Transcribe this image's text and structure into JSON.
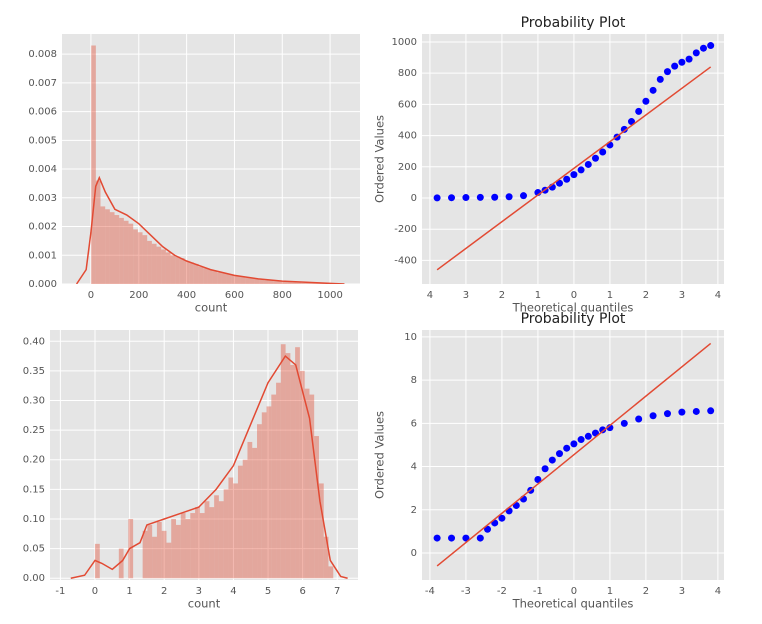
{
  "chart_data": [
    {
      "type": "histogram",
      "xlabel": "count",
      "color": "#e24a33",
      "bins": [
        1,
        20.5,
        40.0,
        59.6,
        79.1,
        98.6,
        118.1,
        137.6,
        157.2,
        176.7,
        196.2,
        215.7,
        235.2,
        254.8,
        274.3,
        293.8,
        313.3,
        332.8,
        352.4,
        371.9,
        391.4,
        410.9,
        430.4,
        450.0,
        469.5,
        489.0,
        508.5,
        528.0,
        547.6,
        567.1,
        586.6,
        606.1,
        625.6,
        645.2,
        664.7,
        684.2,
        703.7,
        723.2,
        742.8,
        762.3,
        781.8,
        801.3,
        820.8,
        840.4,
        859.9,
        879.4,
        898.9,
        918.4,
        938.0,
        957.5,
        977.0
      ],
      "values": [
        0.0083,
        0.0036,
        0.0027,
        0.0026,
        0.0025,
        0.0024,
        0.0023,
        0.0022,
        0.0021,
        0.0019,
        0.0018,
        0.0017,
        0.0015,
        0.0014,
        0.0013,
        0.0012,
        0.0011,
        0.001,
        0.00095,
        0.0009,
        0.0008,
        0.00075,
        0.0007,
        0.0006,
        0.00055,
        0.0005,
        0.00045,
        0.0004,
        0.00038,
        0.00035,
        0.0003,
        0.00028,
        0.00025,
        0.00022,
        0.0002,
        0.00018,
        0.00015,
        0.00013,
        0.00012,
        0.0001,
        9e-05,
        8e-05,
        7e-05,
        6e-05,
        5e-05,
        4e-05,
        4e-05,
        3e-05,
        3e-05,
        2e-05
      ],
      "kde": {
        "x": [
          -60,
          -20,
          0,
          20,
          35,
          60,
          100,
          150,
          200,
          250,
          300,
          350,
          400,
          450,
          500,
          600,
          700,
          800,
          900,
          1000,
          1060
        ],
        "y": [
          0,
          0.0005,
          0.0018,
          0.0034,
          0.0037,
          0.0032,
          0.0026,
          0.0024,
          0.0021,
          0.0017,
          0.0013,
          0.001,
          0.0008,
          0.00065,
          0.0005,
          0.0003,
          0.00018,
          0.0001,
          6e-05,
          2e-05,
          0
        ]
      },
      "xlim": [
        -121,
        1125
      ],
      "xticks": [
        0,
        200,
        400,
        600,
        800,
        1000
      ],
      "ylim": [
        0,
        0.0087
      ],
      "yticks": [
        {
          "value": 0,
          "label": "0.000"
        },
        0.001,
        0.002,
        0.003,
        0.004,
        0.005,
        0.006,
        0.007,
        0.008
      ],
      "grid": true
    },
    {
      "type": "scatter",
      "title": "Probability Plot",
      "xlabel": "Theoretical quantiles",
      "ylabel": "Ordered Values",
      "color": "#0000ff",
      "line_color": "#e24a33",
      "x": [
        -3.8,
        -3.4,
        -3.0,
        -2.6,
        -2.2,
        -1.8,
        -1.4,
        -1.0,
        -0.8,
        -0.6,
        -0.4,
        -0.2,
        0,
        0.2,
        0.4,
        0.6,
        0.8,
        1.0,
        1.2,
        1.4,
        1.6,
        1.8,
        2.0,
        2.2,
        2.4,
        2.6,
        2.8,
        3.0,
        3.2,
        3.4,
        3.6,
        3.8
      ],
      "values": [
        1,
        2,
        3,
        4,
        5,
        8,
        15,
        35,
        50,
        70,
        95,
        120,
        150,
        180,
        215,
        255,
        295,
        340,
        390,
        440,
        490,
        555,
        620,
        690,
        760,
        810,
        845,
        870,
        890,
        930,
        960,
        977
      ],
      "fit_line": {
        "x": [
          -3.8,
          3.8
        ],
        "y": [
          -460,
          840
        ]
      },
      "xlim": [
        -4.22,
        4.17
      ],
      "xticks": [
        {
          "value": -4,
          "label": "4"
        },
        {
          "value": -3,
          "label": "3"
        },
        {
          "value": -2,
          "label": "2"
        },
        {
          "value": -1,
          "label": "1"
        },
        0,
        1,
        2,
        3,
        4
      ],
      "ylim": [
        -551,
        1051
      ],
      "yticks": [
        -400,
        -200,
        0,
        200,
        400,
        600,
        800,
        1000
      ],
      "grid": true
    },
    {
      "type": "histogram",
      "xlabel": "count",
      "color": "#e24a33",
      "bins": [
        0,
        0.138,
        0.275,
        0.413,
        0.551,
        0.689,
        0.826,
        0.964,
        1.102,
        1.239,
        1.377,
        1.515,
        1.652,
        1.79,
        1.928,
        2.066,
        2.203,
        2.341,
        2.479,
        2.616,
        2.754,
        2.892,
        3.029,
        3.167,
        3.305,
        3.443,
        3.58,
        3.718,
        3.856,
        3.993,
        4.131,
        4.269,
        4.406,
        4.544,
        4.682,
        4.82,
        4.957,
        5.095,
        5.233,
        5.37,
        5.508,
        5.646,
        5.783,
        5.921,
        6.059,
        6.197,
        6.334,
        6.472,
        6.61,
        6.747,
        6.885
      ],
      "values": [
        0.058,
        0,
        0,
        0,
        0,
        0.05,
        0,
        0.1,
        0,
        0,
        0.08,
        0.09,
        0.07,
        0.095,
        0.08,
        0.06,
        0.1,
        0.09,
        0.11,
        0.1,
        0.11,
        0.12,
        0.11,
        0.13,
        0.12,
        0.14,
        0.13,
        0.15,
        0.17,
        0.16,
        0.19,
        0.2,
        0.23,
        0.22,
        0.26,
        0.28,
        0.29,
        0.31,
        0.33,
        0.395,
        0.38,
        0.36,
        0.39,
        0.35,
        0.32,
        0.31,
        0.24,
        0.16,
        0.07,
        0.02
      ],
      "kde": {
        "x": [
          -0.7,
          -0.3,
          0,
          0.2,
          0.5,
          0.8,
          1.0,
          1.3,
          1.5,
          2,
          2.5,
          3,
          3.5,
          4,
          4.5,
          5,
          5.5,
          5.8,
          6.2,
          6.5,
          6.8,
          7.1,
          7.3
        ],
        "y": [
          0,
          0.005,
          0.03,
          0.025,
          0.015,
          0.03,
          0.05,
          0.06,
          0.09,
          0.1,
          0.11,
          0.12,
          0.15,
          0.19,
          0.26,
          0.33,
          0.375,
          0.36,
          0.27,
          0.13,
          0.03,
          0.003,
          0
        ]
      },
      "xlim": [
        -1.3,
        7.6
      ],
      "xticks": [
        -1,
        0,
        1,
        2,
        3,
        4,
        5,
        6,
        7
      ],
      "ylim": [
        -0.003,
        0.419
      ],
      "yticks": [
        {
          "value": 0,
          "label": "0.00"
        },
        0.05,
        {
          "value": 0.1,
          "label": "0.10"
        },
        0.15,
        {
          "value": 0.2,
          "label": "0.20"
        },
        0.25,
        {
          "value": 0.3,
          "label": "0.30"
        },
        0.35,
        {
          "value": 0.4,
          "label": "0.40"
        }
      ],
      "grid": true
    },
    {
      "type": "scatter",
      "title": "Probability Plot",
      "xlabel": "Theoretical quantiles",
      "ylabel": "Ordered Values",
      "color": "#0000ff",
      "line_color": "#e24a33",
      "x": [
        -3.8,
        -3.4,
        -3.0,
        -2.6,
        -2.4,
        -2.2,
        -2.0,
        -1.8,
        -1.6,
        -1.4,
        -1.2,
        -1.0,
        -0.8,
        -0.6,
        -0.4,
        -0.2,
        0,
        0.2,
        0.4,
        0.6,
        0.8,
        1.0,
        1.4,
        1.8,
        2.2,
        2.6,
        3.0,
        3.4,
        3.8
      ],
      "values": [
        0.69,
        0.69,
        0.69,
        0.69,
        1.1,
        1.39,
        1.61,
        1.95,
        2.2,
        2.5,
        2.9,
        3.4,
        3.9,
        4.3,
        4.6,
        4.85,
        5.05,
        5.25,
        5.4,
        5.55,
        5.7,
        5.8,
        6.0,
        6.2,
        6.35,
        6.45,
        6.52,
        6.55,
        6.58
      ],
      "fit_line": {
        "x": [
          -3.8,
          3.8
        ],
        "y": [
          -0.6,
          9.7
        ]
      },
      "xlim": [
        -4.22,
        4.17
      ],
      "xticks": [
        -4,
        -3,
        -2,
        -1,
        0,
        1,
        2,
        3,
        4
      ],
      "ylim": [
        -1.25,
        10.32
      ],
      "yticks": [
        0,
        2,
        4,
        6,
        8,
        10
      ],
      "grid": true
    }
  ]
}
